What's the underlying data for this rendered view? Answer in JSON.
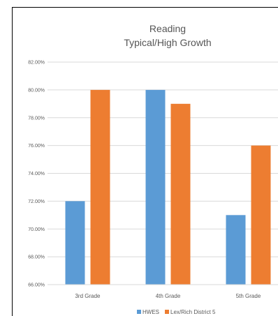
{
  "chart_data": {
    "type": "bar",
    "title": "Reading",
    "subtitle": "Typical/High Growth",
    "categories": [
      "3rd Grade",
      "4th Grade",
      "5th Grade"
    ],
    "series": [
      {
        "name": "HWES",
        "values": [
          72,
          80,
          71
        ],
        "color": "#5b9bd5"
      },
      {
        "name": "Lex/Rich District 5",
        "values": [
          80,
          79,
          76
        ],
        "color": "#ed7d31"
      }
    ],
    "ylim": [
      66,
      82
    ],
    "yticks": [
      "66.00%",
      "68.00%",
      "70.00%",
      "72.00%",
      "74.00%",
      "76.00%",
      "78.00%",
      "80.00%",
      "82.00%"
    ],
    "grid": true,
    "legend": "bottom",
    "xlabel": "",
    "ylabel": ""
  }
}
